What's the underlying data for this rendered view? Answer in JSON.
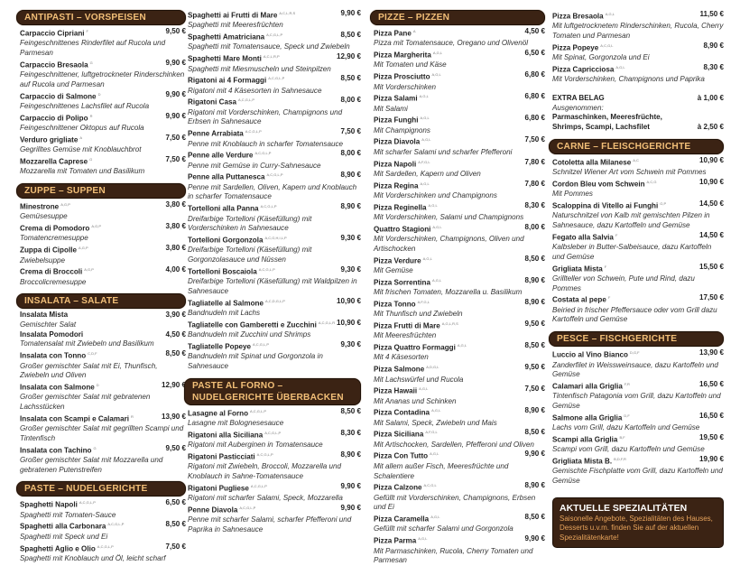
{
  "colors": {
    "header_bg": "#3b2314",
    "header_text": "#f2bf78",
    "special_text": "#e8a45c"
  },
  "columns": [
    {
      "blocks": [
        {
          "type": "section",
          "title": "ANTIPASTI – VORSPEISEN"
        },
        {
          "type": "item",
          "name": "Carpaccio Cipriani",
          "al": "F",
          "price": "9,50 €",
          "desc": "Feingeschnittenes Rinderfilet auf Rucola und Parmesan"
        },
        {
          "type": "item",
          "name": "Carpaccio Bresaola",
          "al": "G",
          "price": "9,90 €",
          "desc": "Feingeschnittener, luftgetrockneter Rinderschinken auf Rucola und Parmesan"
        },
        {
          "type": "item",
          "name": "Carpaccio di Salmone",
          "al": "D",
          "price": "9,90 €",
          "desc": "Feingeschnittenes Lachsfilet auf Rucola"
        },
        {
          "type": "item",
          "name": "Carpaccio di Polipo",
          "al": "R",
          "price": "9,90 €",
          "desc": "Feingeschnittener Oktopus auf Rucola"
        },
        {
          "type": "item",
          "name": "Verduro grigliate",
          "al": "A",
          "price": "7,50 €",
          "desc": "Gegrilltes Gemüse mit Knoblauchbrot"
        },
        {
          "type": "item",
          "name": "Mozzarella Caprese",
          "al": "G",
          "price": "7,50 €",
          "desc": "Mozzarella mit Tomaten und Basilikum"
        },
        {
          "type": "section",
          "title": "ZUPPE – SUPPEN"
        },
        {
          "type": "item",
          "name": "Minestrone",
          "al": "A,G,P",
          "price": "3,80 €",
          "desc": "Gemüsesuppe"
        },
        {
          "type": "item",
          "name": "Crema di Pomodoro",
          "al": "A,G,P",
          "price": "3,80 €",
          "desc": "Tomatencremesuppe"
        },
        {
          "type": "item",
          "name": "Zuppa di Cipolle",
          "al": "A,G,P",
          "price": "3,80 €",
          "desc": "Zwiebelsuppe"
        },
        {
          "type": "item",
          "name": "Crema di Broccoli",
          "al": "A,G,P",
          "price": "4,00 €",
          "desc": "Broccolicremesuppe"
        },
        {
          "type": "section",
          "title": "INSALATA – SALATE"
        },
        {
          "type": "item",
          "name": "Insalata Mista",
          "al": "",
          "price": "3,90 €",
          "desc": "Gemischter Salat"
        },
        {
          "type": "item",
          "name": "Insalata Pomodori",
          "al": "",
          "price": "4,50 €",
          "desc": "Tomatensalat mit Zwiebeln und Basilikum"
        },
        {
          "type": "item",
          "name": "Insalata con Tonno",
          "al": "C,D,F",
          "price": "8,50 €",
          "desc": "Großer gemischter Salat mit Ei, Thunfisch, Zwiebeln und Oliven"
        },
        {
          "type": "item",
          "name": "Insalata con Salmone",
          "al": "D",
          "price": "12,90 €",
          "desc": "Großer gemischter Salat mit gebratenen Lachsstücken"
        },
        {
          "type": "item",
          "name": "Insalata con Scampi e Calamari",
          "al": "R",
          "price": "13,90 €",
          "desc": "Großer gemischter Salat mit gegrillten Scampi und Tintenfisch"
        },
        {
          "type": "item",
          "name": "Insalata con Tachino",
          "al": "G",
          "price": "9,50 €",
          "desc": "Großer gemischter Salat mit Mozzarella und gebratenen Putenstreifen"
        },
        {
          "type": "section",
          "title": "PASTE – NUDELGERICHTE"
        },
        {
          "type": "item",
          "name": "Spaghetti Napoli",
          "al": "A,C,G,L,P",
          "price": "6,50 €",
          "desc": "Spaghetti mit Tomaten-Sauce"
        },
        {
          "type": "item",
          "name": "Spaghetti alla Carbonara",
          "al": "A,C,G,L,P",
          "price": "8,50 €",
          "desc": "Spaghetti mit Speck und Ei"
        },
        {
          "type": "item",
          "name": "Spaghetti Aglio e Olio",
          "al": "A,C,G,L,P",
          "price": "7,50 €",
          "desc": "Spaghetti mit Knoblauch und Öl, leicht scharf"
        }
      ]
    },
    {
      "blocks": [
        {
          "type": "item",
          "name": "Spaghetti ai Frutti di Mare",
          "al": "A,C,L,R,S",
          "price": "9,90 €",
          "desc": "Spaghetti mit Meeresfrüchten"
        },
        {
          "type": "item",
          "name": "Spaghetti Amatriciana",
          "al": "A,C,G,L,P",
          "price": "8,50 €",
          "desc": "Spaghetti mit Tomatensauce, Speck und Zwiebeln"
        },
        {
          "type": "item",
          "name": "Spaghetti Mare Monti",
          "al": "A,C,L,R,P",
          "price": "12,90 €",
          "desc": "Spaghetti mit Miesmuscheln und Steinpilzen"
        },
        {
          "type": "item",
          "name": "Rigatoni ai 4 Formaggi",
          "al": "A,C,G,L,P",
          "price": "8,50 €",
          "desc": "Rigatoni mit 4 Käsesorten in Sahnesauce"
        },
        {
          "type": "item",
          "name": "Rigatoni Casa",
          "al": "A,C,G,L,P",
          "price": "8,00 €",
          "desc": "Rigatoni mit Vorderschinken, Champignons und Erbsen in Sahnesauce"
        },
        {
          "type": "item",
          "name": "Penne Arrabiata",
          "al": "A,C,G,L,P",
          "price": "7,50 €",
          "desc": "Penne mit Knoblauch in scharfer Tomatensauce"
        },
        {
          "type": "item",
          "name": "Penne alle Verdure",
          "al": "A,C,G,L,P",
          "price": "8,00 €",
          "desc": "Penne mit Gemüse in Curry-Sahnesauce"
        },
        {
          "type": "item",
          "name": "Penne alla Puttanesca",
          "al": "A,C,G,L,P",
          "price": "8,90 €",
          "desc": "Penne mit Sardellen, Oliven, Kapern und Knoblauch in scharfer Tomatensauce"
        },
        {
          "type": "item",
          "name": "Tortelloni alla Panna",
          "al": "A,C,G,L,P",
          "price": "8,90 €",
          "desc": "Dreifarbige Tortelloni (Käsefüllung) mit Vorderschinken in Sahnesauce"
        },
        {
          "type": "item",
          "name": "Tortelloni Gorgonzola",
          "al": "A,C,G,H,I,L,P",
          "price": "9,30 €",
          "desc": "Dreifarbige Tortelloni (Käsefüllung) mit Gorgonzolasauce und Nüssen"
        },
        {
          "type": "item",
          "name": "Tortelloni Boscaiola",
          "al": "A,C,G,L,P",
          "price": "9,30 €",
          "desc": "Dreifarbige Tortelloni (Käsefüllung) mit Waldpilzen in Sahnesauce"
        },
        {
          "type": "item",
          "name": "Tagliatelle al Salmone",
          "al": "A,C,D,G,L,P",
          "price": "10,90 €",
          "desc": "Bandnudeln mit Lachs"
        },
        {
          "type": "item",
          "name": "Tagliatelle con Gamberetti e Zucchini",
          "al": "A,C,G,L,R",
          "price": "10,90 €",
          "desc": "Bandnudeln mit Zucchini und Shrimps"
        },
        {
          "type": "item",
          "name": "Tagliatelle Popeye",
          "al": "A,C,G,L,P",
          "price": "9,30 €",
          "desc": "Bandnudeln mit Spinat und Gorgonzola in Sahnesauce"
        },
        {
          "type": "section",
          "title": "PASTE AL FORNO – NUDELGERICHTE ÜBERBACKEN"
        },
        {
          "type": "item",
          "name": "Lasagne al Forno",
          "al": "A,C,G,L,P",
          "price": "8,50 €",
          "desc": "Lasagne mit Bolognesesauce"
        },
        {
          "type": "item",
          "name": "Rigatoni alla Siciliana",
          "al": "A,C,G,L,P",
          "price": "8,30 €",
          "desc": "Rigatoni mit Auberginen in Tomatensauce"
        },
        {
          "type": "item",
          "name": "Rigatoni Pasticciati",
          "al": "A,C,G,L,P",
          "price": "8,90 €",
          "desc": "Rigatoni mit Zwiebeln, Broccoli, Mozzarella und Knoblauch in Sahne-Tomatensauce"
        },
        {
          "type": "item",
          "name": "Rigatoni Pugliese",
          "al": "A,C,G,L,P",
          "price": "9,90 €",
          "desc": "Rigatoni mit scharfer Salami, Speck, Mozzarella"
        },
        {
          "type": "item",
          "name": "Penne Diavola",
          "al": "A,C,G,L,P",
          "price": "9,90 €",
          "desc": "Penne mit scharfer Salami, scharfer Pfefferoni und Paprika in Sahnesauce"
        }
      ]
    },
    {
      "blocks": [
        {
          "type": "section",
          "title": "PIZZE – PIZZEN"
        },
        {
          "type": "item",
          "name": "Pizza Pane",
          "al": "A",
          "price": "4,50 €",
          "desc": "Pizza mit Tomatensauce, Oregano und Olivenöl"
        },
        {
          "type": "item",
          "name": "Pizza Margherita",
          "al": "A,G,L",
          "price": "6,50 €",
          "desc": "Mit Tomaten und Käse"
        },
        {
          "type": "item",
          "name": "Pizza Prosciutto",
          "al": "A,G,L",
          "price": "6,80 €",
          "desc": "Mit Vorderschinken"
        },
        {
          "type": "item",
          "name": "Pizza Salami",
          "al": "A,G,L",
          "price": "6,80 €",
          "desc": "Mit Salami"
        },
        {
          "type": "item",
          "name": "Pizza Funghi",
          "al": "A,G,L",
          "price": "6,80 €",
          "desc": "Mit Champignons"
        },
        {
          "type": "item",
          "name": "Pizza Diavola",
          "al": "A,G,L",
          "price": "7,50 €",
          "desc": "Mit scharfer Salami und scharfer Pfefferoni"
        },
        {
          "type": "item",
          "name": "Pizza Napoli",
          "al": "A,F,G,L",
          "price": "7,80 €",
          "desc": "Mit Sardellen, Kapern und Oliven"
        },
        {
          "type": "item",
          "name": "Pizza Regina",
          "al": "A,G,L",
          "price": "7,80 €",
          "desc": "Mit Vorderschinken und Champignons"
        },
        {
          "type": "item",
          "name": "Pizza Reginella",
          "al": "A,G,L",
          "price": "8,30 €",
          "desc": "Mit Vorderschinken, Salami und Champignons"
        },
        {
          "type": "item",
          "name": "Quattro Stagioni",
          "al": "A,G,L",
          "price": "8,00 €",
          "desc": "Mit Vorderschinken, Champignons, Oliven und Artischocken"
        },
        {
          "type": "item",
          "name": "Pizza Verdure",
          "al": "A,G,L",
          "price": "8,50 €",
          "desc": "Mit Gemüse"
        },
        {
          "type": "item",
          "name": "Pizza Sorrentina",
          "al": "A,G,L",
          "price": "8,90 €",
          "desc": "Mit frischen Tomaten, Mozzarella u. Basilikum"
        },
        {
          "type": "item",
          "name": "Pizza Tonno",
          "al": "A,F,G,L",
          "price": "8,90 €",
          "desc": "Mit Thunfisch und Zwiebeln"
        },
        {
          "type": "item",
          "name": "Pizza Frutti di Mare",
          "al": "A,G,L,R,S",
          "price": "9,50 €",
          "desc": "Mit Meeresfrüchten"
        },
        {
          "type": "item",
          "name": "Pizza Quattro Formaggi",
          "al": "A,G,L",
          "price": "8,50 €",
          "desc": "Mit 4 Käsesorten"
        },
        {
          "type": "item",
          "name": "Pizza Salmone",
          "al": "A,D,G,L",
          "price": "9,50 €",
          "desc": "Mit Lachswürfel und Rucola"
        },
        {
          "type": "item",
          "name": "Pizza Hawaii",
          "al": "A,G,L",
          "price": "7,50 €",
          "desc": "Mit Ananas und Schinken"
        },
        {
          "type": "item",
          "name": "Pizza Contadina",
          "al": "A,G,L",
          "price": "8,90 €",
          "desc": "Mit Salami, Speck, Zwiebeln und Mais"
        },
        {
          "type": "item",
          "name": "Pizza Siciliana",
          "al": "A,F,G,L",
          "price": "8,50 €",
          "desc": "Mit Artischocken, Sardellen, Pfefferoni und Oliven"
        },
        {
          "type": "item",
          "name": "Pizza Con Tutto",
          "al": "A,G,L",
          "price": "9,90 €",
          "desc": "Mit allem außer Fisch, Meeresfrüchte und Schalentiere"
        },
        {
          "type": "item",
          "name": "Pizza Calzone",
          "al": "A,C,G,L",
          "price": "8,90 €",
          "desc": "Gefüllt mit Vorderschinken, Champignons, Erbsen und Ei"
        },
        {
          "type": "item",
          "name": "Pizza Caramella",
          "al": "A,G,L",
          "price": "8,50 €",
          "desc": "Gefüllt mit scharfer Salami und Gorgonzola"
        },
        {
          "type": "item",
          "name": "Pizza Parma",
          "al": "A,G,L",
          "price": "9,90 €",
          "desc": "Mit Parmaschinken, Rucola, Cherry Tomaten und Parmesan"
        }
      ]
    },
    {
      "blocks": [
        {
          "type": "item",
          "name": "Pizza Bresaola",
          "al": "A,G,L",
          "price": "11,50 €",
          "desc": "Mit luftgetrocknetem Rinderschinken, Rucola, Cherry Tomaten und Parmesan"
        },
        {
          "type": "item",
          "name": "Pizza Popeye",
          "al": "A,C,G,L",
          "price": "8,90 €",
          "desc": "Mit Spinat, Gorgonzola und Ei"
        },
        {
          "type": "item",
          "name": "Pizza Capricciosa",
          "al": "A,G,L",
          "price": "8,30 €",
          "desc": "Mit Vorderschinken, Champignons und Paprika"
        },
        {
          "type": "extra",
          "name": "EXTRA BELAG",
          "price": "à 1,00 €",
          "note": "Ausgenommen:",
          "name2": "Parmaschinken, Meeresfrüchte, Shrimps, Scampi, Lachsfilet",
          "price2": "à 2,50 €"
        },
        {
          "type": "section",
          "title": "CARNE – FLEISCHGERICHTE"
        },
        {
          "type": "item",
          "name": "Cotoletta alla Milanese",
          "al": "A,C",
          "price": "10,90 €",
          "desc": "Schnitzel Wiener Art vom Schwein mit Pommes"
        },
        {
          "type": "item",
          "name": "Cordon Bleu vom Schwein",
          "al": "A,C,G",
          "price": "10,90 €",
          "desc": "Mit Pommes"
        },
        {
          "type": "item",
          "name": "Scaloppina di Vitello ai Funghi",
          "al": "G,P",
          "price": "14,50 €",
          "desc": "Naturschnitzel von Kalb mit gemischten Pilzen in Sahnesauce, dazu Kartoffeln und Gemüse"
        },
        {
          "type": "item",
          "name": "Fegato alla Salvia",
          "al": "F",
          "price": "14,50 €",
          "desc": "Kalbsleber in Butter-Salbeisauce, dazu Kartoffeln und Gemüse"
        },
        {
          "type": "item",
          "name": "Grigliata Mista",
          "al": "F",
          "price": "15,50 €",
          "desc": "Grillteller von Schwein, Pute und Rind, dazu Pommes"
        },
        {
          "type": "item",
          "name": "Costata al pepe",
          "al": "F",
          "price": "17,50 €",
          "desc": "Beiried in frischer Pfeffersauce oder vom Grill dazu Kartoffeln und Gemüse"
        },
        {
          "type": "section",
          "title": "PESCE – FISCHGERICHTE"
        },
        {
          "type": "item",
          "name": "Luccio al Vino Bianco",
          "al": "D,G,F",
          "price": "13,90 €",
          "desc": "Zanderfilet in Weissweinsauce, dazu Kartoffeln und Gemüse"
        },
        {
          "type": "item",
          "name": "Calamari alla Griglia",
          "al": "F,R",
          "price": "16,50 €",
          "desc": "Tintenfisch Patagonia vom Grill, dazu Kartoffeln und Gemüse"
        },
        {
          "type": "item",
          "name": "Salmone alla Griglia",
          "al": "D,F",
          "price": "16,50 €",
          "desc": "Lachs vom Grill, dazu Kartoffeln und Gemüse"
        },
        {
          "type": "item",
          "name": "Scampi alla Griglia",
          "al": "B,F",
          "price": "19,50 €",
          "desc": "Scampi vom Grill, dazu Kartoffeln und Gemüse"
        },
        {
          "type": "item",
          "name": "Grigliata Mista B.",
          "al": "B,D,F,R",
          "price": "19,90 €",
          "desc": "Gemischte Fischplatte vom Grill, dazu Kartoffeln und Gemüse"
        },
        {
          "type": "special",
          "title": "AKTUELLE SPEZIALITÄTEN",
          "text": "Saisonelle Angebote, Spezialitäten des Hauses, Desserts u.v.m. finden Sie auf der aktuellen Spezialitätenkarte!"
        }
      ]
    }
  ]
}
